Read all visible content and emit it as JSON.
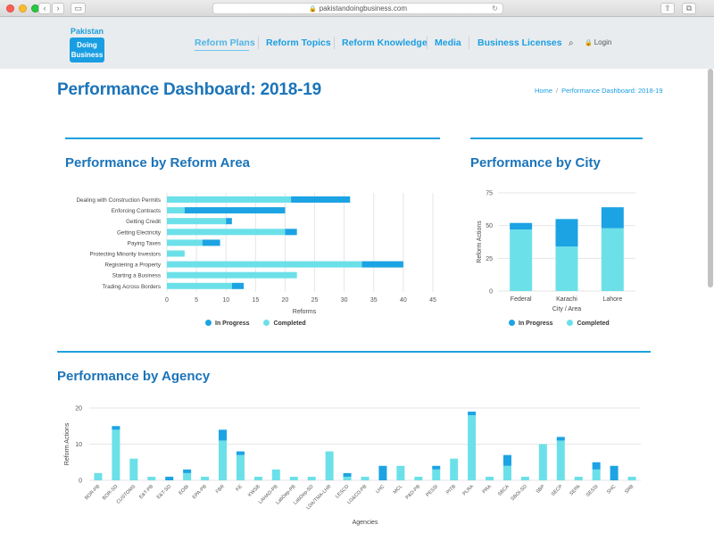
{
  "browser": {
    "url": "pakistandoingbusiness.com",
    "back_glyph": "‹",
    "forward_glyph": "›",
    "sidebar_glyph": "▭",
    "reload_glyph": "↻",
    "share_glyph": "⇧",
    "tabs_glyph": "⧉",
    "lock_glyph": "🔒"
  },
  "logo": {
    "top_text": "Pakistan",
    "line1": "Doing",
    "line2": "Business"
  },
  "nav": {
    "items": [
      "Reform Plans",
      "Reform Topics",
      "Reform Knowledge",
      "Media",
      "Business Licenses"
    ],
    "search_glyph": "⌕",
    "login_label": "Login",
    "login_glyph": "🔒"
  },
  "page": {
    "title": "Performance Dashboard: 2018-19",
    "breadcrumb": [
      "Home",
      "Performance Dashboard: 2018-19"
    ],
    "breadcrumb_sep": "/"
  },
  "colors": {
    "completed": "#6ce0e9",
    "in_progress": "#1ca3e3",
    "accent": "#1b74b9"
  },
  "legend": {
    "in_progress": "In Progress",
    "completed": "Completed"
  },
  "chart_data": [
    {
      "title": "Performance by Reform Area",
      "type": "bar",
      "orientation": "horizontal",
      "stacked": true,
      "categories": [
        "Dealing with Construction Permits",
        "Enforcing Contracts",
        "Getting Credit",
        "Getting Electricity",
        "Paying Taxes",
        "Protecting Minority Investors",
        "Registering a Property",
        "Starting a Business",
        "Trading Across Borders"
      ],
      "series": [
        {
          "name": "Completed",
          "values": [
            21,
            3,
            10,
            20,
            6,
            3,
            33,
            22,
            11
          ]
        },
        {
          "name": "In Progress",
          "values": [
            10,
            17,
            1,
            2,
            3,
            0,
            7,
            0,
            2
          ]
        }
      ],
      "xlabel": "Reforms",
      "ylabel": "",
      "xlim": [
        0,
        45
      ],
      "ticks": [
        "0",
        "5",
        "10",
        "15",
        "20",
        "25",
        "30",
        "35",
        "40",
        "45"
      ],
      "grid": true,
      "legend": "bottom"
    },
    {
      "title": "Performance by City",
      "type": "bar",
      "stacked": true,
      "categories": [
        "Federal",
        "Karachi",
        "Lahore"
      ],
      "series": [
        {
          "name": "Completed",
          "values": [
            47,
            34,
            48
          ]
        },
        {
          "name": "In Progress",
          "values": [
            5,
            21,
            16
          ]
        }
      ],
      "xlabel": "City / Area",
      "ylabel": "Reform Actions",
      "ylim": [
        0,
        75
      ],
      "ticks": [
        "0",
        "25",
        "50",
        "75"
      ],
      "grid": true,
      "legend": "bottom"
    },
    {
      "title": "Performance by Agency",
      "type": "bar",
      "stacked": true,
      "categories": [
        "BOR-PB",
        "BOR-SD",
        "CUSTOMS",
        "E&T-PB",
        "E&T-SD",
        "EOBI",
        "EPA-PB",
        "FBR",
        "KE",
        "KWSB",
        "LAHAD-PB",
        "LabDep-PB",
        "LabDep-SD",
        "LDA/TMA-LHR",
        "LESCO",
        "LG&CD-PB",
        "LHC",
        "MCL",
        "P&D-PB",
        "PESSI",
        "PITB",
        "PLRA",
        "PRA",
        "SBCA",
        "SBOI-SD",
        "SBP",
        "SECP",
        "SEPA",
        "SESSI",
        "SHC",
        "SRB"
      ],
      "series": [
        {
          "name": "Completed",
          "values": [
            2,
            14,
            6,
            1,
            0,
            2,
            1,
            11,
            7,
            1,
            3,
            1,
            1,
            8,
            1,
            1,
            0,
            4,
            1,
            3,
            6,
            18,
            1,
            4,
            1,
            10,
            11,
            1,
            3,
            0,
            1
          ]
        },
        {
          "name": "In Progress",
          "values": [
            0,
            1,
            0,
            0,
            1,
            1,
            0,
            3,
            1,
            0,
            0,
            0,
            0,
            0,
            1,
            0,
            4,
            0,
            0,
            1,
            0,
            1,
            0,
            3,
            0,
            0,
            1,
            0,
            2,
            4,
            0
          ]
        }
      ],
      "xlabel": "Agencies",
      "ylabel": "Reform Actions",
      "ylim": [
        0,
        20
      ],
      "ticks": [
        "0",
        "10",
        "20"
      ],
      "grid": true
    }
  ]
}
